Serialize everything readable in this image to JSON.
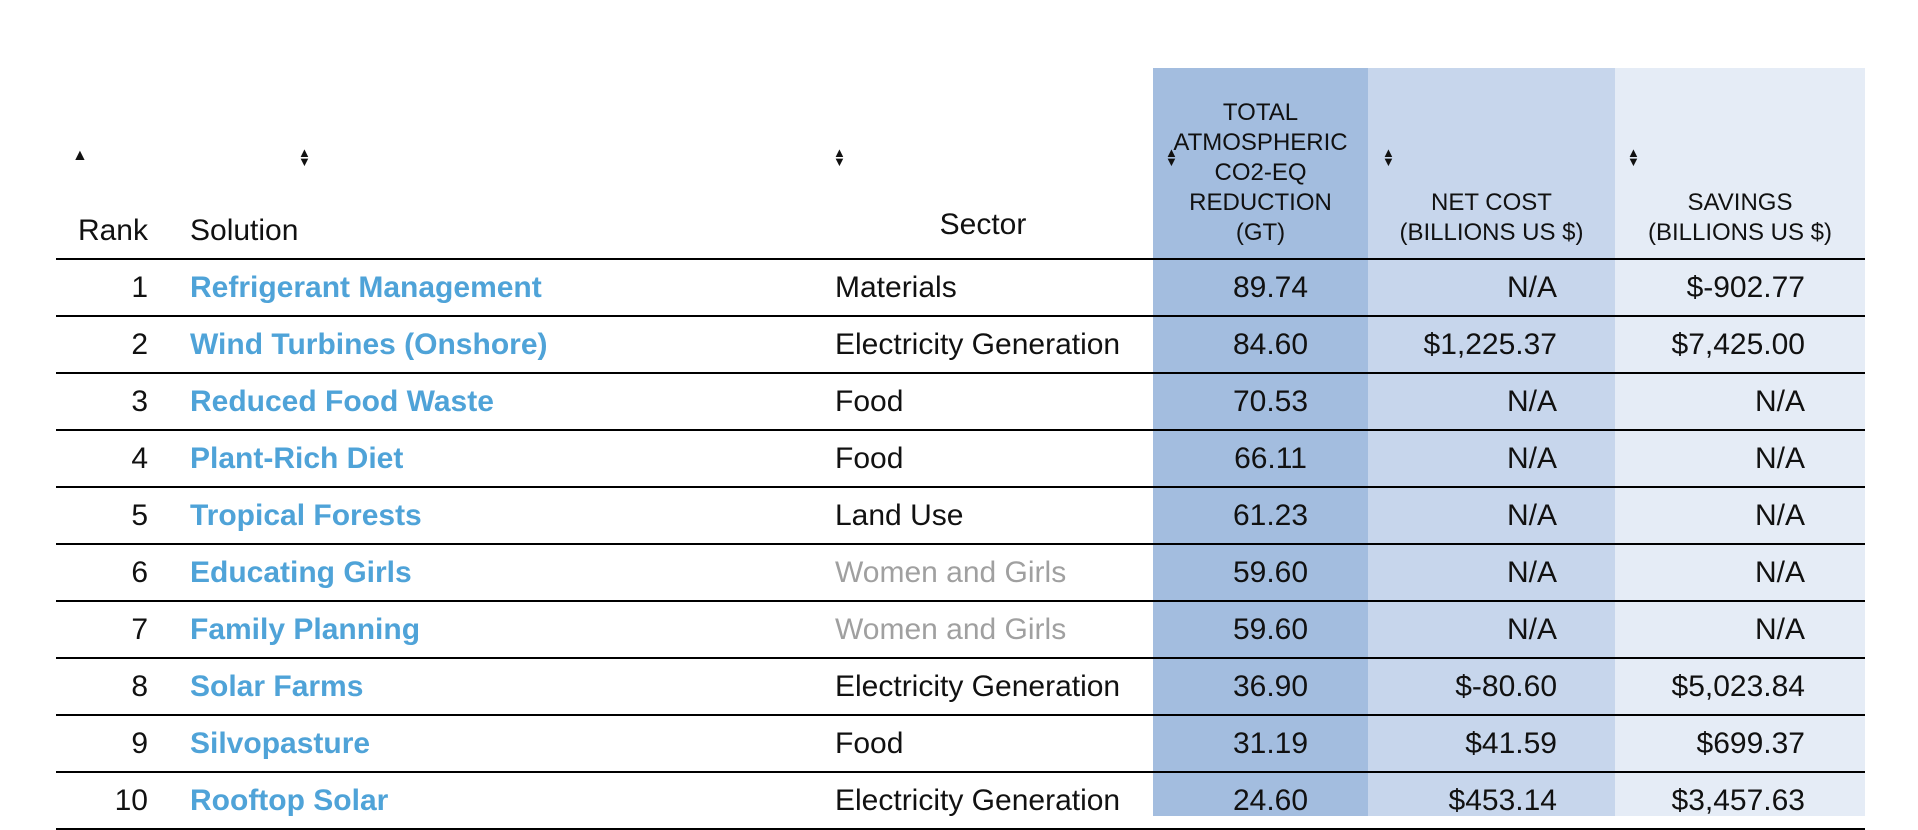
{
  "table": {
    "headers": {
      "rank": "Rank",
      "solution": "Solution",
      "sector": "Sector",
      "co2": [
        "TOTAL",
        "ATMOSPHERIC",
        "CO2-EQ",
        "REDUCTION",
        "(GT)"
      ],
      "cost": [
        "NET COST",
        "(BILLIONS US $)"
      ],
      "savings": [
        "SAVINGS",
        "(BILLIONS US $)"
      ]
    },
    "sort_icons": {
      "rank": "sort-ascending-icon",
      "other": "sort-both-icon"
    },
    "rows": [
      {
        "rank": "1",
        "solution": "Refrigerant Management",
        "sector": "Materials",
        "co2": "89.74",
        "cost": "N/A",
        "savings": "$-902.77",
        "sector_muted": false
      },
      {
        "rank": "2",
        "solution": "Wind Turbines (Onshore)",
        "sector": "Electricity Generation",
        "co2": "84.60",
        "cost": "$1,225.37",
        "savings": "$7,425.00",
        "sector_muted": false
      },
      {
        "rank": "3",
        "solution": "Reduced Food Waste",
        "sector": "Food",
        "co2": "70.53",
        "cost": "N/A",
        "savings": "N/A",
        "sector_muted": false
      },
      {
        "rank": "4",
        "solution": "Plant-Rich Diet",
        "sector": "Food",
        "co2": "66.11",
        "cost": "N/A",
        "savings": "N/A",
        "sector_muted": false
      },
      {
        "rank": "5",
        "solution": "Tropical Forests",
        "sector": "Land Use",
        "co2": "61.23",
        "cost": "N/A",
        "savings": "N/A",
        "sector_muted": false
      },
      {
        "rank": "6",
        "solution": "Educating Girls",
        "sector": "Women and Girls",
        "co2": "59.60",
        "cost": "N/A",
        "savings": "N/A",
        "sector_muted": true
      },
      {
        "rank": "7",
        "solution": "Family Planning",
        "sector": "Women and Girls",
        "co2": "59.60",
        "cost": "N/A",
        "savings": "N/A",
        "sector_muted": true
      },
      {
        "rank": "8",
        "solution": "Solar Farms",
        "sector": "Electricity Generation",
        "co2": "36.90",
        "cost": "$-80.60",
        "savings": "$5,023.84",
        "sector_muted": false
      },
      {
        "rank": "9",
        "solution": "Silvopasture",
        "sector": "Food",
        "co2": "31.19",
        "cost": "$41.59",
        "savings": "$699.37",
        "sector_muted": false
      },
      {
        "rank": "10",
        "solution": "Rooftop Solar",
        "sector": "Electricity Generation",
        "co2": "24.60",
        "cost": "$453.14",
        "savings": "$3,457.63",
        "sector_muted": false
      }
    ]
  },
  "colors": {
    "link": "#4fa3d8",
    "muted_text": "#a0a0a0",
    "co2_band": "#a3bddf",
    "cost_band": "#c7d6ec",
    "savings_band": "#e5ecf6"
  }
}
